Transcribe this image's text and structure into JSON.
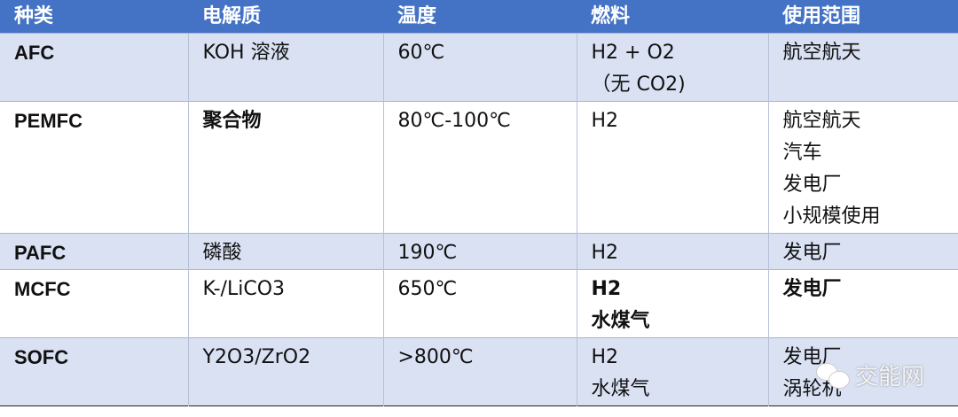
{
  "headers": [
    "种类",
    "电解质",
    "温度",
    "燃料",
    "使用范围"
  ],
  "rows": [
    {
      "type": "AFC",
      "electrolyte": [
        "KOH 溶液"
      ],
      "temperature": [
        "60℃"
      ],
      "fuel": [
        "H2 + O2",
        "（无 CO2)"
      ],
      "usage": [
        "航空航天"
      ]
    },
    {
      "type": "PEMFC",
      "electrolyte": [
        "聚合物"
      ],
      "temperature": [
        "80℃-100℃"
      ],
      "fuel": [
        "H2"
      ],
      "usage": [
        "航空航天",
        "汽车",
        "发电厂",
        "小规模使用"
      ]
    },
    {
      "type": "PAFC",
      "electrolyte": [
        "磷酸"
      ],
      "temperature": [
        "190℃"
      ],
      "fuel": [
        "H2"
      ],
      "usage": [
        "发电厂"
      ]
    },
    {
      "type": "MCFC",
      "electrolyte": [
        "K-/LiCO3"
      ],
      "temperature": [
        "650℃"
      ],
      "fuel": [
        "H2",
        "水煤气"
      ],
      "usage": [
        "发电厂"
      ]
    },
    {
      "type": "SOFC",
      "electrolyte": [
        "Y2O3/ZrO2"
      ],
      "temperature": [
        ">800℃"
      ],
      "fuel": [
        "H2",
        "水煤气"
      ],
      "usage": [
        "发电厂",
        "涡轮机"
      ]
    }
  ],
  "watermark": "交能网",
  "colors": {
    "header": "#4472c4",
    "band": "#d9e1f3"
  }
}
